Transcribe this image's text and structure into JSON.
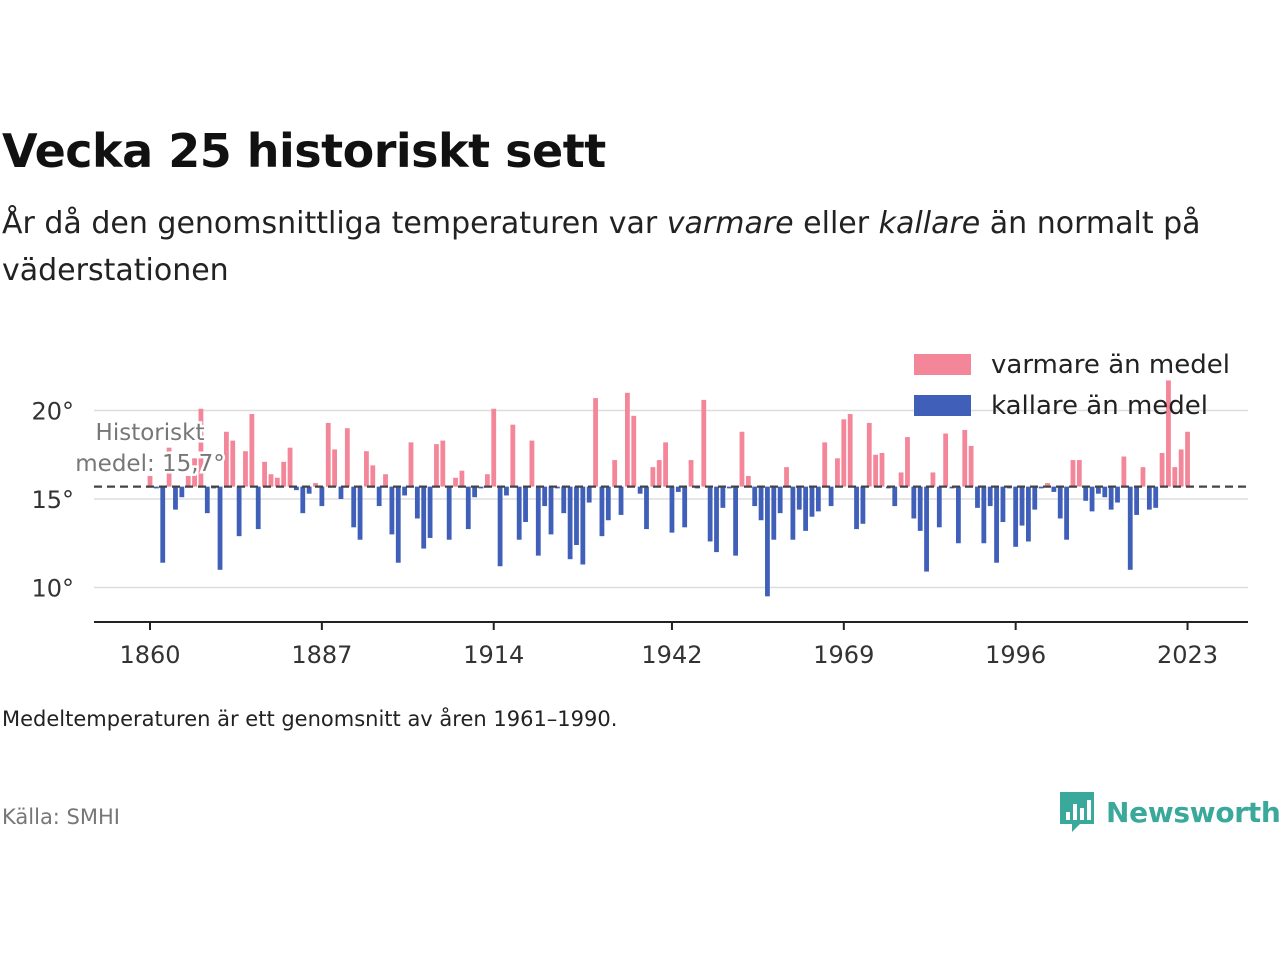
{
  "title": "Vecka 25 historiskt sett",
  "subtitle": {
    "part1": "År då den genomsnittliga temperaturen var ",
    "warm_word": "varmare",
    "part2": " eller ",
    "cold_word": "kallare",
    "part3": " än normalt på väderstationen"
  },
  "note": "Medeltemperaturen är ett genomsnitt av åren 1961–1990.",
  "source": "Källa: SMHI",
  "brand": "Newsworthy",
  "colors": {
    "warm": "#f4869a",
    "cold": "#3f5fb9",
    "mean_line": "#444444",
    "grid": "#dddddd",
    "axis": "#222222"
  },
  "chart_data": {
    "type": "bar",
    "baseline": 15.7,
    "mean_label_line1": "Historiskt",
    "mean_label_line2": "medel: 15,7°",
    "ylim": [
      8.1,
      22
    ],
    "y_ticks": [
      10,
      15,
      20
    ],
    "y_tick_labels": [
      "10°",
      "15°",
      "20°"
    ],
    "x_ticks": [
      1860,
      1887,
      1914,
      1942,
      1969,
      1996,
      2023
    ],
    "x_tick_labels": [
      "1860",
      "1887",
      "1914",
      "1942",
      "1969",
      "1996",
      "2023"
    ],
    "xlim": [
      1851.2,
      2032.5
    ],
    "legend": [
      {
        "key": "warm",
        "label": "varmare än medel"
      },
      {
        "key": "cold",
        "label": "kallare än medel"
      }
    ],
    "years": [
      1860,
      1861,
      1862,
      1863,
      1864,
      1865,
      1866,
      1867,
      1868,
      1869,
      1870,
      1871,
      1872,
      1873,
      1874,
      1875,
      1876,
      1877,
      1878,
      1879,
      1880,
      1881,
      1882,
      1883,
      1884,
      1885,
      1886,
      1887,
      1888,
      1889,
      1890,
      1891,
      1892,
      1893,
      1894,
      1895,
      1896,
      1897,
      1898,
      1899,
      1900,
      1901,
      1902,
      1903,
      1904,
      1905,
      1906,
      1907,
      1908,
      1909,
      1910,
      1911,
      1912,
      1913,
      1914,
      1915,
      1916,
      1917,
      1918,
      1919,
      1920,
      1921,
      1922,
      1923,
      1924,
      1925,
      1926,
      1927,
      1928,
      1929,
      1930,
      1931,
      1932,
      1933,
      1934,
      1935,
      1936,
      1937,
      1938,
      1939,
      1940,
      1941,
      1942,
      1943,
      1944,
      1945,
      1946,
      1947,
      1948,
      1949,
      1950,
      1951,
      1952,
      1953,
      1954,
      1955,
      1956,
      1957,
      1958,
      1959,
      1960,
      1961,
      1962,
      1963,
      1964,
      1965,
      1966,
      1967,
      1968,
      1969,
      1970,
      1971,
      1972,
      1973,
      1974,
      1975,
      1976,
      1977,
      1978,
      1979,
      1980,
      1981,
      1982,
      1983,
      1984,
      1985,
      1986,
      1987,
      1988,
      1989,
      1990,
      1991,
      1992,
      1993,
      1994,
      1995,
      1996,
      1997,
      1998,
      1999,
      2000,
      2001,
      2002,
      2003,
      2004,
      2005,
      2006,
      2007,
      2008,
      2009,
      2010,
      2011,
      2012,
      2013,
      2014,
      2015,
      2016,
      2017,
      2018,
      2019,
      2020,
      2021,
      2022,
      2023
    ],
    "values": [
      16.3,
      15.6,
      11.4,
      17.9,
      14.4,
      15.1,
      16.3,
      17.3,
      20.1,
      14.2,
      15.6,
      11.0,
      18.8,
      18.3,
      12.9,
      17.7,
      19.8,
      13.3,
      17.1,
      16.4,
      16.2,
      17.1,
      17.9,
      15.5,
      14.2,
      15.3,
      15.9,
      14.6,
      19.3,
      17.8,
      15.0,
      19.0,
      13.4,
      12.7,
      17.7,
      16.9,
      14.6,
      16.4,
      13.0,
      11.4,
      15.2,
      18.2,
      13.9,
      12.2,
      12.8,
      18.1,
      18.3,
      12.7,
      16.2,
      16.6,
      13.3,
      15.1,
      15.6,
      16.4,
      20.1,
      11.2,
      15.2,
      19.2,
      12.7,
      13.7,
      18.3,
      11.8,
      14.6,
      13.0,
      15.6,
      14.2,
      11.6,
      12.4,
      11.3,
      14.8,
      20.7,
      12.9,
      13.8,
      17.2,
      14.1,
      21.0,
      19.7,
      15.3,
      13.3,
      16.8,
      17.2,
      18.2,
      13.1,
      15.4,
      13.4,
      17.2,
      15.6,
      20.6,
      12.6,
      12.0,
      14.5,
      15.6,
      11.8,
      18.8,
      16.3,
      14.6,
      13.8,
      9.5,
      12.7,
      14.2,
      16.8,
      12.7,
      14.4,
      13.2,
      14.0,
      14.3,
      18.2,
      14.6,
      17.3,
      19.5,
      19.8,
      13.3,
      13.6,
      19.3,
      17.5,
      17.6,
      15.6,
      14.6,
      16.5,
      18.5,
      13.9,
      13.2,
      10.9,
      16.5,
      13.4,
      18.7,
      15.6,
      12.5,
      18.9,
      18.0,
      14.5,
      12.5,
      14.6,
      11.4,
      13.7,
      15.6,
      12.3,
      13.5,
      12.6,
      14.4,
      15.6,
      15.9,
      15.4,
      13.9,
      12.7,
      17.2,
      17.2,
      14.9,
      14.3,
      15.3,
      15.1,
      14.4,
      14.8,
      17.4,
      11.0,
      14.1,
      16.8,
      14.4,
      14.5,
      17.6,
      21.7,
      16.8,
      17.8,
      18.8
    ]
  }
}
